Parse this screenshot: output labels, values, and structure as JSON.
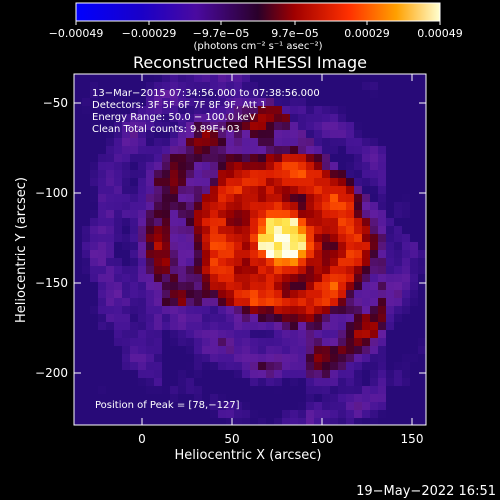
{
  "colorbar": {
    "ticks": [
      "−0.00049",
      "−0.00029",
      "−9.7e−05",
      "9.7e−05",
      "0.00029",
      "0.00049"
    ],
    "units": "(photons cm⁻² s⁻¹ asec⁻²)"
  },
  "plot": {
    "title": "Reconstructed RHESSI Image",
    "xlabel": "Heliocentric X (arcsec)",
    "ylabel": "Heliocentric Y (arcsec)",
    "xticks": [
      "0",
      "50",
      "100",
      "150"
    ],
    "yticks": [
      "−50",
      "−100",
      "−150",
      "−200"
    ]
  },
  "info": {
    "line1": "13−Mar−2015 07:34:56.000 to 07:38:56.000",
    "line2": "Detectors: 3F 5F 6F 7F 8F 9F, Att 1",
    "line3": "Energy Range: 50.0 − 100.0 keV",
    "line4": "Clean     Total counts: 9.89E+03",
    "peak": "Position of Peak = [78,−127]"
  },
  "footer": {
    "date": "19−May−2022 16:51"
  },
  "colors": {
    "background": "#000000",
    "text": "#ffffff",
    "low": "#3a0a9a",
    "high": "#ffffff"
  }
}
